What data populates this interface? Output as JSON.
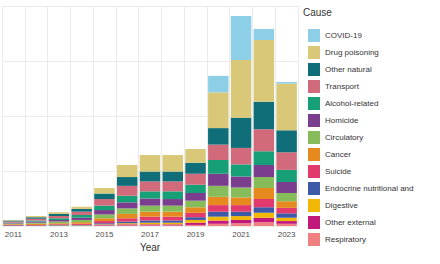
{
  "chart_data": {
    "type": "bar",
    "x_label": "Year",
    "legend_title": "Cause",
    "categories": [
      "2011",
      null,
      "2013",
      null,
      "2015",
      null,
      "2017",
      null,
      "2019",
      null,
      "2021",
      null,
      "2023"
    ],
    "series": [
      {
        "name": "COVID-19",
        "color": "#8ecfe8",
        "values": [
          0,
          0,
          0,
          0,
          0,
          0,
          0,
          0,
          0,
          30,
          80,
          20,
          3
        ]
      },
      {
        "name": "Drug poisoning",
        "color": "#d9c878",
        "values": [
          1,
          2,
          3,
          4,
          10,
          22,
          30,
          30,
          25,
          65,
          105,
          112,
          85
        ]
      },
      {
        "name": "Other natural",
        "color": "#0f6e78",
        "values": [
          2,
          3,
          4,
          5,
          10,
          16,
          18,
          18,
          20,
          30,
          55,
          50,
          40
        ]
      },
      {
        "name": "Transport",
        "color": "#d16a7a",
        "values": [
          2,
          3,
          4,
          6,
          12,
          18,
          18,
          18,
          20,
          28,
          30,
          40,
          32
        ]
      },
      {
        "name": "Alcohol-related",
        "color": "#17a077",
        "values": [
          1,
          2,
          3,
          5,
          8,
          12,
          13,
          14,
          15,
          25,
          22,
          25,
          22
        ]
      },
      {
        "name": "Homicide",
        "color": "#7b3e8e",
        "values": [
          1,
          2,
          3,
          4,
          8,
          11,
          13,
          12,
          14,
          22,
          20,
          22,
          20
        ]
      },
      {
        "name": "Circulatory",
        "color": "#86bd5a",
        "values": [
          1,
          2,
          3,
          4,
          7,
          10,
          11,
          11,
          12,
          20,
          18,
          20,
          15
        ]
      },
      {
        "name": "Cancer",
        "color": "#e6891f",
        "values": [
          1,
          2,
          2,
          3,
          5,
          8,
          9,
          9,
          10,
          15,
          14,
          20,
          12
        ]
      },
      {
        "name": "Suicide",
        "color": "#e23a6c",
        "values": [
          1,
          1,
          1,
          2,
          4,
          6,
          7,
          7,
          8,
          12,
          12,
          15,
          10
        ]
      },
      {
        "name": "Endocrine nutritional and",
        "color": "#3d5aa8",
        "values": [
          1,
          1,
          1,
          1,
          2,
          3,
          4,
          4,
          5,
          9,
          8,
          10,
          8
        ]
      },
      {
        "name": "Digestive",
        "color": "#f2b705",
        "values": [
          0,
          0,
          1,
          1,
          1,
          2,
          3,
          3,
          5,
          7,
          7,
          9,
          6
        ]
      },
      {
        "name": "Other external",
        "color": "#c2187c",
        "values": [
          0,
          0,
          0,
          0,
          1,
          2,
          2,
          2,
          4,
          6,
          6,
          8,
          5
        ]
      },
      {
        "name": "Respiratory",
        "color": "#f08080",
        "values": [
          0,
          0,
          0,
          0,
          1,
          1,
          1,
          1,
          2,
          4,
          5,
          7,
          4
        ]
      }
    ],
    "ylim": [
      0,
      400
    ],
    "yticks": [
      0,
      100,
      200,
      300,
      400
    ],
    "stacked": true,
    "grid": true,
    "legend": "right",
    "tick_labels": "x"
  }
}
